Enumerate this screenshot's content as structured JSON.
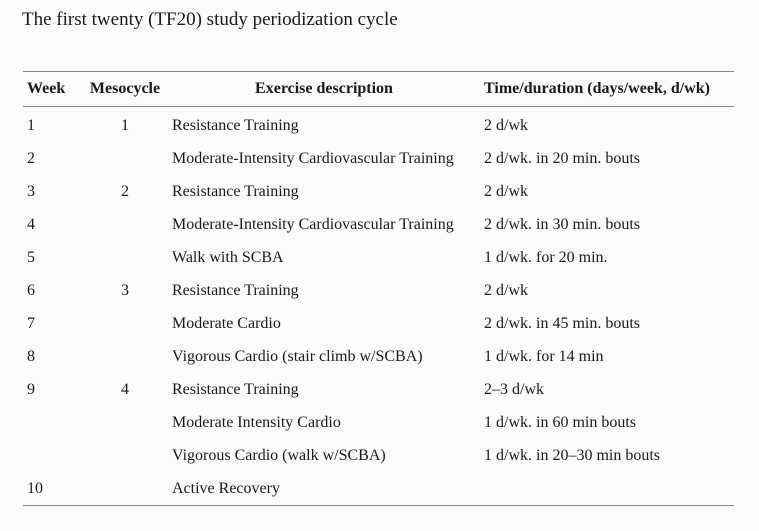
{
  "caption": "The first twenty (TF20) study periodization cycle",
  "headers": {
    "week": "Week",
    "mesocycle": "Mesocycle",
    "exercise": "Exercise description",
    "time": "Time/duration (days/week, d/wk)"
  },
  "rows": [
    {
      "week": "1",
      "mesocycle": "1",
      "exercise": "Resistance Training",
      "time": "2 d/wk"
    },
    {
      "week": "2",
      "mesocycle": "",
      "exercise": "Moderate-Intensity Cardiovascular Training",
      "time": "2 d/wk. in 20 min. bouts"
    },
    {
      "week": "3",
      "mesocycle": "2",
      "exercise": "Resistance Training",
      "time": "2 d/wk"
    },
    {
      "week": "4",
      "mesocycle": "",
      "exercise": "Moderate-Intensity Cardiovascular Training",
      "time": "2 d/wk. in 30 min. bouts"
    },
    {
      "week": "5",
      "mesocycle": "",
      "exercise": "Walk with SCBA",
      "time": "1 d/wk. for 20 min."
    },
    {
      "week": "6",
      "mesocycle": "3",
      "exercise": "Resistance Training",
      "time": "2 d/wk"
    },
    {
      "week": "7",
      "mesocycle": "",
      "exercise": "Moderate Cardio",
      "time": "2 d/wk. in 45 min. bouts"
    },
    {
      "week": "8",
      "mesocycle": "",
      "exercise": "Vigorous Cardio (stair climb w/SCBA)",
      "time": "1 d/wk. for 14 min"
    },
    {
      "week": "9",
      "mesocycle": "4",
      "exercise": "Resistance Training",
      "time": "2–3 d/wk"
    },
    {
      "week": "",
      "mesocycle": "",
      "exercise": "Moderate Intensity Cardio",
      "time": "1 d/wk. in 60 min bouts"
    },
    {
      "week": "",
      "mesocycle": "",
      "exercise": "Vigorous Cardio (walk w/SCBA)",
      "time": "1 d/wk. in 20–30 min bouts"
    },
    {
      "week": "10",
      "mesocycle": "",
      "exercise": "Active Recovery",
      "time": ""
    }
  ]
}
